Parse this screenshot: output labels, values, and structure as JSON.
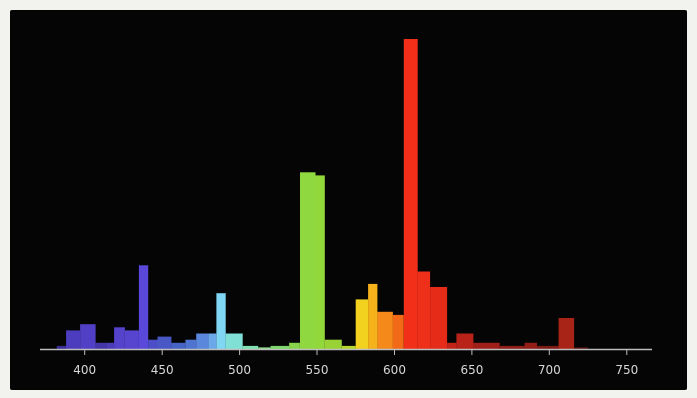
{
  "chart_data": {
    "type": "bar",
    "title": "",
    "xlabel": "",
    "ylabel": "",
    "xlim": [
      375,
      765
    ],
    "ylim": [
      0,
      100
    ],
    "grid": false,
    "x_ticks": [
      "400",
      "450",
      "500",
      "550",
      "600",
      "650",
      "700",
      "750"
    ],
    "series": [
      {
        "bins": [
          {
            "x0": 382,
            "x1": 388,
            "value": 1,
            "color": "#3a2e9a"
          },
          {
            "x0": 388,
            "x1": 397,
            "value": 6,
            "color": "#4b3dbe"
          },
          {
            "x0": 397,
            "x1": 407,
            "value": 8,
            "color": "#5140c6"
          },
          {
            "x0": 407,
            "x1": 414,
            "value": 2,
            "color": "#4336a8"
          },
          {
            "x0": 414,
            "x1": 419,
            "value": 2,
            "color": "#4a3bb8"
          },
          {
            "x0": 419,
            "x1": 426,
            "value": 7,
            "color": "#5543cc"
          },
          {
            "x0": 426,
            "x1": 435,
            "value": 6,
            "color": "#5745d0"
          },
          {
            "x0": 435,
            "x1": 441,
            "value": 27,
            "color": "#5a48da"
          },
          {
            "x0": 441,
            "x1": 447,
            "value": 3,
            "color": "#4c4ec8"
          },
          {
            "x0": 447,
            "x1": 456,
            "value": 4,
            "color": "#4a58c6"
          },
          {
            "x0": 456,
            "x1": 465,
            "value": 2,
            "color": "#4664c4"
          },
          {
            "x0": 465,
            "x1": 472,
            "value": 3,
            "color": "#4e74d0"
          },
          {
            "x0": 472,
            "x1": 480,
            "value": 5,
            "color": "#5a86dc"
          },
          {
            "x0": 480,
            "x1": 485,
            "value": 5,
            "color": "#6aa8ea"
          },
          {
            "x0": 485,
            "x1": 491,
            "value": 18,
            "color": "#7fd6f2"
          },
          {
            "x0": 491,
            "x1": 502,
            "value": 5,
            "color": "#80e0d6"
          },
          {
            "x0": 502,
            "x1": 512,
            "value": 1,
            "color": "#7fe0b0"
          },
          {
            "x0": 512,
            "x1": 520,
            "value": 0.5,
            "color": "#8fe08e"
          },
          {
            "x0": 520,
            "x1": 532,
            "value": 1,
            "color": "#7bd86b"
          },
          {
            "x0": 532,
            "x1": 539,
            "value": 2,
            "color": "#86d44a"
          },
          {
            "x0": 539,
            "x1": 549,
            "value": 57,
            "color": "#8fd83f"
          },
          {
            "x0": 549,
            "x1": 555,
            "value": 56,
            "color": "#92d83a"
          },
          {
            "x0": 555,
            "x1": 566,
            "value": 3,
            "color": "#98d235"
          },
          {
            "x0": 566,
            "x1": 575,
            "value": 1,
            "color": "#b7d62a"
          },
          {
            "x0": 575,
            "x1": 583,
            "value": 16,
            "color": "#f2d21e"
          },
          {
            "x0": 583,
            "x1": 589,
            "value": 21,
            "color": "#f6b21a"
          },
          {
            "x0": 589,
            "x1": 599,
            "value": 12,
            "color": "#f58a1a"
          },
          {
            "x0": 599,
            "x1": 606,
            "value": 11,
            "color": "#f26a18"
          },
          {
            "x0": 606,
            "x1": 615,
            "value": 100,
            "color": "#f2301a"
          },
          {
            "x0": 615,
            "x1": 623,
            "value": 25,
            "color": "#ee2f1a"
          },
          {
            "x0": 623,
            "x1": 634,
            "value": 20,
            "color": "#e62c18"
          },
          {
            "x0": 634,
            "x1": 640,
            "value": 2,
            "color": "#c22418"
          },
          {
            "x0": 640,
            "x1": 651,
            "value": 5,
            "color": "#b82218"
          },
          {
            "x0": 651,
            "x1": 668,
            "value": 2,
            "color": "#a01f18"
          },
          {
            "x0": 668,
            "x1": 684,
            "value": 1,
            "color": "#8e1d16"
          },
          {
            "x0": 684,
            "x1": 692,
            "value": 2,
            "color": "#941d16"
          },
          {
            "x0": 692,
            "x1": 706,
            "value": 1,
            "color": "#7e1a14"
          },
          {
            "x0": 706,
            "x1": 716,
            "value": 10,
            "color": "#a82416"
          },
          {
            "x0": 716,
            "x1": 725,
            "value": 0.5,
            "color": "#5a1410"
          }
        ]
      }
    ],
    "colors": {
      "background": "#050505",
      "axis": "#bdbdbd",
      "tick_label": "#d8d8d8",
      "page": "#f2f2ef"
    }
  }
}
